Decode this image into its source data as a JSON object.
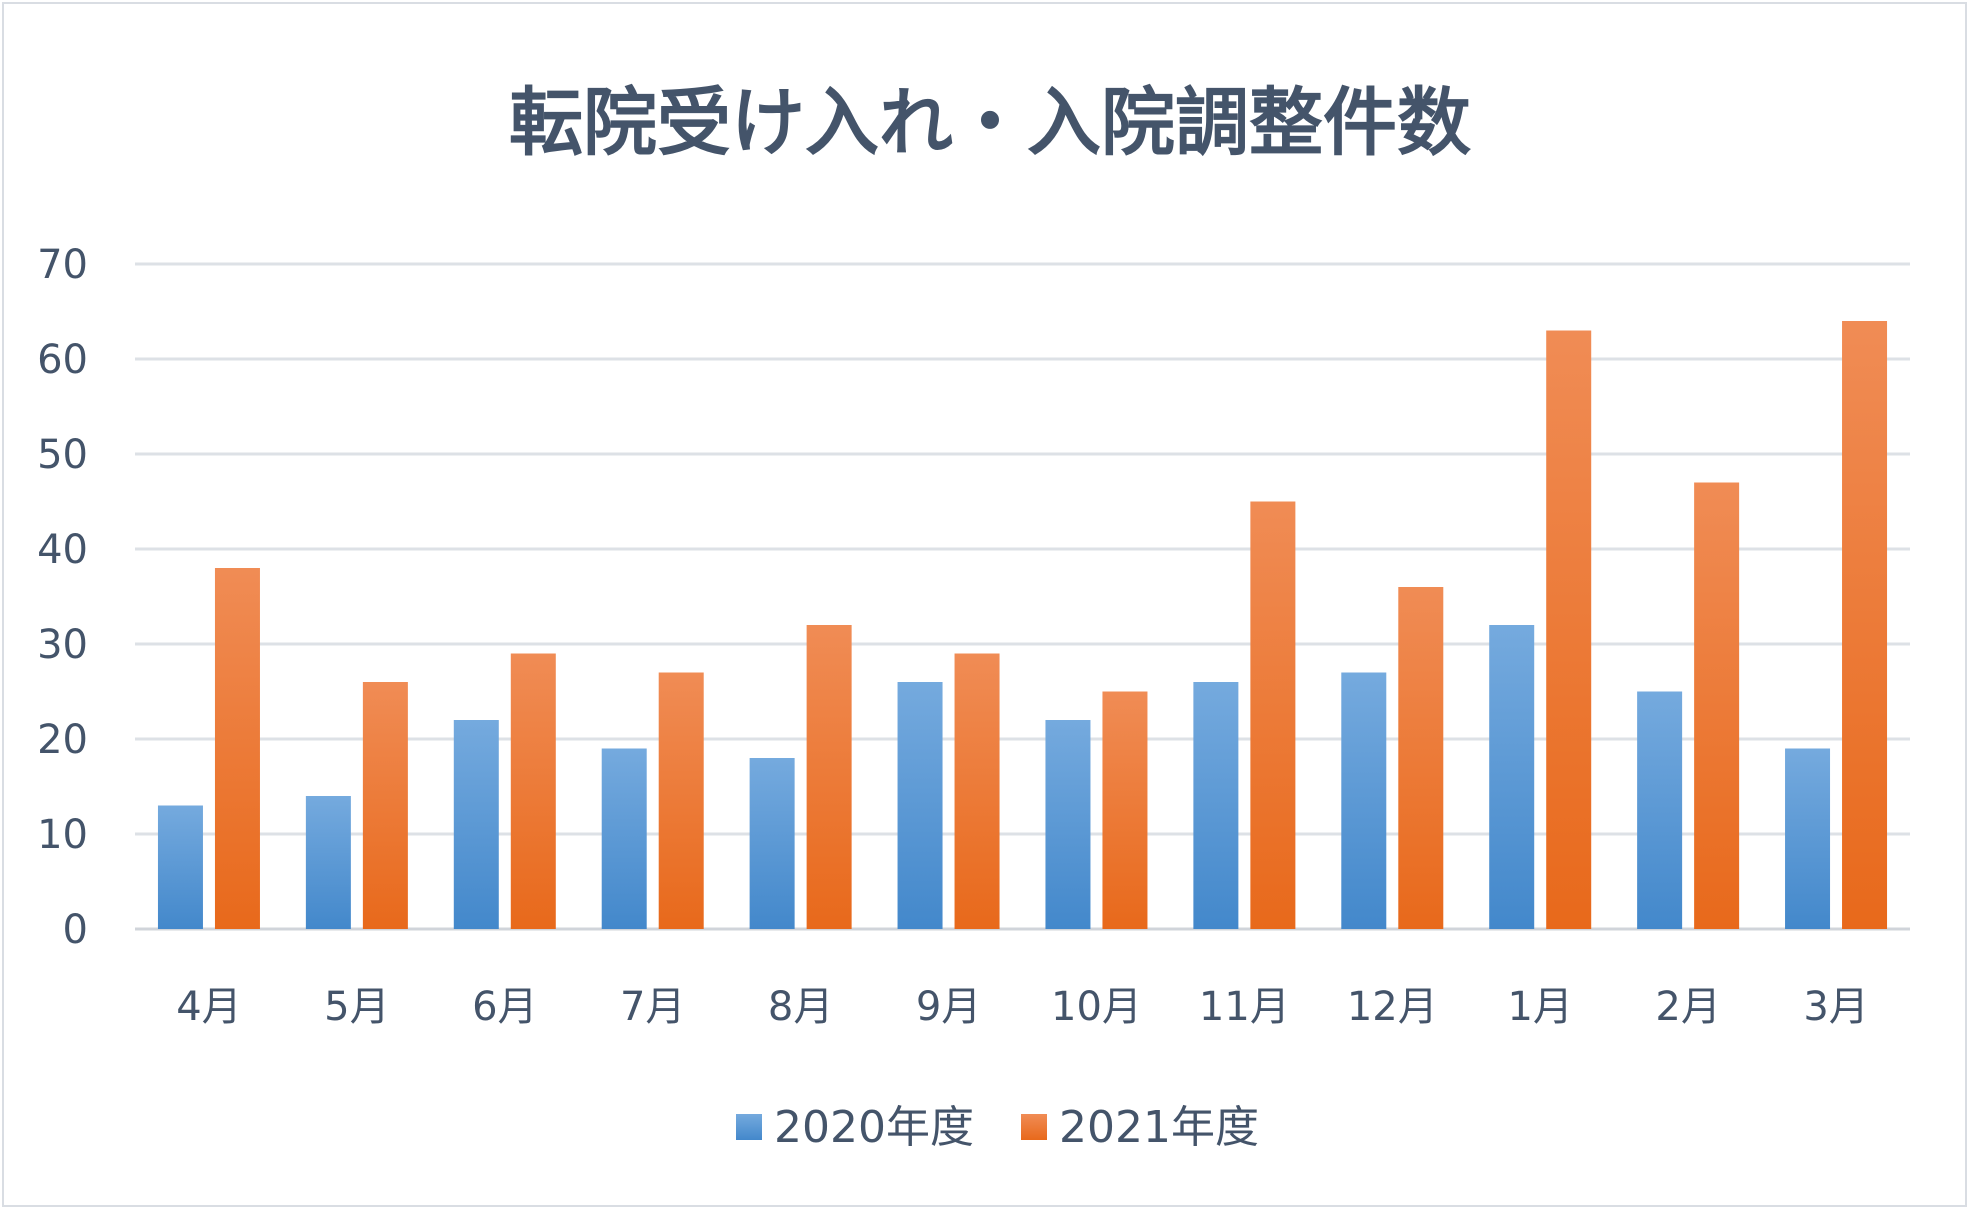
{
  "chart_data": {
    "type": "bar",
    "title": "転院受け入れ・入院調整件数",
    "xlabel": "",
    "ylabel": "",
    "categories": [
      "4月",
      "5月",
      "6月",
      "7月",
      "8月",
      "9月",
      "10月",
      "11月",
      "12月",
      "1月",
      "2月",
      "3月"
    ],
    "series": [
      {
        "name": "2020年度",
        "color": "#5b9bd5",
        "values": [
          13,
          14,
          22,
          19,
          18,
          26,
          22,
          26,
          27,
          32,
          25,
          19
        ]
      },
      {
        "name": "2021年度",
        "color": "#ed7d31",
        "values": [
          38,
          26,
          29,
          27,
          32,
          29,
          25,
          45,
          36,
          63,
          47,
          64
        ]
      }
    ],
    "ylim": [
      0,
      70
    ],
    "yticks": [
      0,
      10,
      20,
      30,
      40,
      50,
      60,
      70
    ],
    "grid": true,
    "legend_position": "bottom"
  }
}
